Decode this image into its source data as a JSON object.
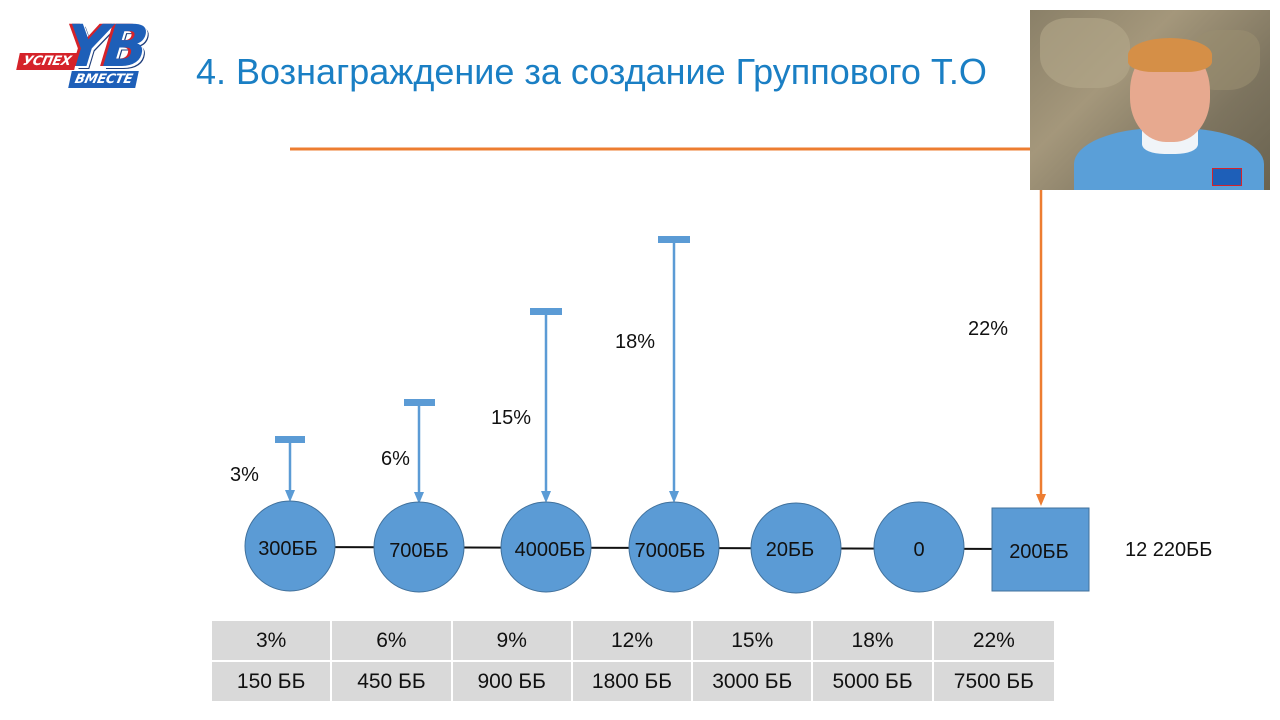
{
  "logo": {
    "mark": "YB",
    "tag_top": "УСПЕХ",
    "tag_bottom": "ВМЕСТЕ"
  },
  "title": "4. Вознаграждение за создание Группового Т.О",
  "nodes": [
    {
      "label": "300ББ",
      "shape": "circle",
      "arrow_pct": "3%"
    },
    {
      "label": "700ББ",
      "shape": "circle",
      "arrow_pct": "6%"
    },
    {
      "label": "4000ББ",
      "shape": "circle",
      "arrow_pct": "15%"
    },
    {
      "label": "7000ББ",
      "shape": "circle",
      "arrow_pct": "18%"
    },
    {
      "label": "20ББ",
      "shape": "circle"
    },
    {
      "label": "0",
      "shape": "circle"
    },
    {
      "label": "200ББ",
      "shape": "square",
      "arrow_pct": "22%"
    }
  ],
  "total": "12 220ББ",
  "table": {
    "percents": [
      "3%",
      "6%",
      "9%",
      "12%",
      "15%",
      "18%",
      "22%"
    ],
    "points": [
      "150 ББ",
      "450 ББ",
      "900 ББ",
      "1800 ББ",
      "3000 ББ",
      "5000 ББ",
      "7500 ББ"
    ]
  },
  "colors": {
    "title": "#1a7fc4",
    "node_fill": "#5b9bd5",
    "node_stroke": "#41719c",
    "blue_arrow": "#5b9bd5",
    "orange_arrow": "#ed7d31",
    "table_cell": "#d9d9d9"
  },
  "webcam": {
    "visible": true
  }
}
